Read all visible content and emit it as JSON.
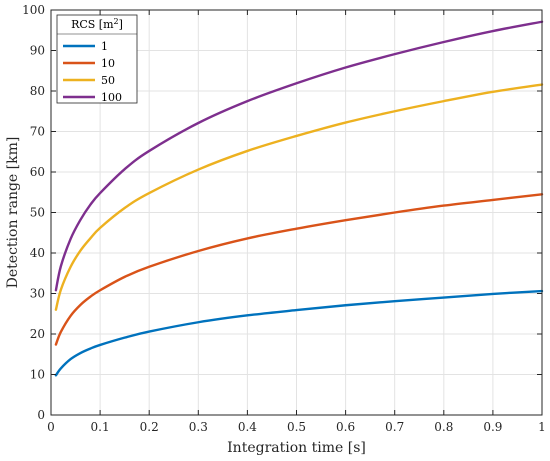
{
  "chart_data": {
    "type": "line",
    "xlabel": "Integration time [s]",
    "ylabel": "Detection range [km]",
    "xlim": [
      0,
      1
    ],
    "ylim": [
      0,
      100
    ],
    "xticks": [
      0,
      0.1,
      0.2,
      0.3,
      0.4,
      0.5,
      0.6,
      0.7,
      0.8,
      0.9,
      1
    ],
    "xtick_labels": [
      "0",
      "0.1",
      "0.2",
      "0.3",
      "0.4",
      "0.5",
      "0.6",
      "0.7",
      "0.8",
      "0.9",
      "1"
    ],
    "yticks": [
      0,
      10,
      20,
      30,
      40,
      50,
      60,
      70,
      80,
      90,
      100
    ],
    "ytick_labels": [
      "0",
      "10",
      "20",
      "30",
      "40",
      "50",
      "60",
      "70",
      "80",
      "90",
      "100"
    ],
    "grid": true,
    "legend": {
      "title": "RCS [m",
      "title_sup": "2",
      "title_end": "]",
      "placement": "top-left"
    },
    "x": [
      0.01,
      0.02,
      0.04,
      0.06,
      0.08,
      0.1,
      0.15,
      0.2,
      0.3,
      0.4,
      0.5,
      0.6,
      0.7,
      0.8,
      0.9,
      1.0
    ],
    "series": [
      {
        "name": "1",
        "color": "#0072BD",
        "values": [
          9.8,
          11.5,
          13.8,
          15.3,
          16.4,
          17.3,
          19.1,
          20.6,
          22.9,
          24.6,
          25.9,
          27.1,
          28.1,
          29.0,
          29.9,
          30.6
        ]
      },
      {
        "name": "10",
        "color": "#D95319",
        "values": [
          17.4,
          20.5,
          24.5,
          27.2,
          29.2,
          30.8,
          34.1,
          36.6,
          40.5,
          43.6,
          46.0,
          48.1,
          50.0,
          51.7,
          53.1,
          54.5
        ]
      },
      {
        "name": "50",
        "color": "#EDB120",
        "values": [
          26.0,
          30.9,
          36.6,
          40.6,
          43.6,
          46.2,
          51.1,
          54.8,
          60.6,
          65.2,
          68.9,
          72.2,
          75.0,
          77.5,
          79.8,
          81.6
        ]
      },
      {
        "name": "100",
        "color": "#7E2F8E",
        "values": [
          30.8,
          36.7,
          43.5,
          48.2,
          51.9,
          54.8,
          60.7,
          65.2,
          72.1,
          77.5,
          81.9,
          85.8,
          89.1,
          92.1,
          94.8,
          97.1
        ]
      }
    ]
  }
}
